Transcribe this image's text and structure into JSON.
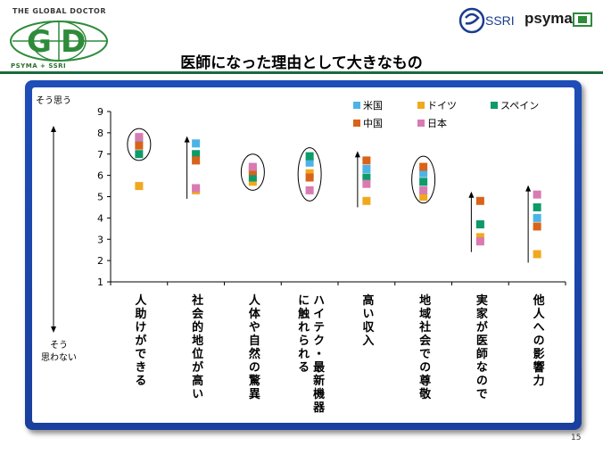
{
  "header": {
    "logo_left_top": "THE GLOBAL DOCTOR",
    "logo_left_bottom": "PSYMA + SSRI",
    "logo_right_ssri": "SSRI",
    "logo_right_psyma": "psyma"
  },
  "title": "医師になった理由として大きなもの",
  "page_number": "15",
  "colors": {
    "frame": "#1e4db8",
    "title_rule": "#1a6b3c",
    "us": "#4db3e6",
    "germany": "#f0a91e",
    "spain": "#0f9a6a",
    "china": "#d9631a",
    "japan": "#d97ab3"
  },
  "chart_data": {
    "type": "scatter",
    "ylim": [
      1,
      9
    ],
    "yticks": [
      "1",
      "2",
      "3",
      "4",
      "5",
      "6",
      "7",
      "8",
      "9"
    ],
    "y_top_label": "そう思う",
    "y_bottom_label_1": "そう",
    "y_bottom_label_2": "思わない",
    "categories": [
      "人助けができる",
      "社会的地位が高い",
      "人体や自然の驚異",
      "ハイテク・最新機器に触れられる",
      "高い収入",
      "地域社会での尊敬",
      "実家が医師なので",
      "他人への影響力"
    ],
    "category_lines": [
      [
        "人助けができる"
      ],
      [
        "社会的地位が高い"
      ],
      [
        "人体や自然の驚異"
      ],
      [
        "ハイテク・最新機器",
        "に触れられる"
      ],
      [
        "高い収入"
      ],
      [
        "地域社会での尊敬"
      ],
      [
        "実家が医師なので"
      ],
      [
        "他人への影響力"
      ]
    ],
    "series": [
      {
        "name": "米国",
        "color": "#4db3e6",
        "values": [
          7.7,
          7.5,
          6.3,
          6.6,
          6.3,
          6.1,
          3.7,
          4.0
        ]
      },
      {
        "name": "ドイツ",
        "color": "#f0a91e",
        "values": [
          5.5,
          5.3,
          5.7,
          6.1,
          4.8,
          5.0,
          3.1,
          2.3
        ]
      },
      {
        "name": "スペイン",
        "color": "#0f9a6a",
        "values": [
          7.0,
          7.0,
          5.9,
          6.9,
          5.9,
          5.7,
          3.7,
          4.5
        ]
      },
      {
        "name": "中国",
        "color": "#d9631a",
        "values": [
          7.4,
          6.7,
          6.2,
          5.9,
          6.7,
          6.4,
          4.8,
          3.6
        ]
      },
      {
        "name": "日本",
        "color": "#d97ab3",
        "values": [
          7.8,
          5.4,
          6.4,
          5.3,
          5.6,
          5.3,
          2.9,
          5.1
        ]
      }
    ],
    "ranges": [
      {
        "kind": "ellipse",
        "from": 6.7,
        "to": 8.2
      },
      {
        "kind": "arrow",
        "from": 4.9,
        "to": 7.8
      },
      {
        "kind": "ellipse",
        "from": 5.3,
        "to": 7.0
      },
      {
        "kind": "ellipse",
        "from": 4.8,
        "to": 7.3
      },
      {
        "kind": "arrow",
        "from": 4.5,
        "to": 7.1
      },
      {
        "kind": "ellipse",
        "from": 4.7,
        "to": 6.9
      },
      {
        "kind": "arrow",
        "from": 2.4,
        "to": 5.2
      },
      {
        "kind": "arrow",
        "from": 1.9,
        "to": 5.5
      }
    ],
    "legend_position": "top-right",
    "grid": false
  }
}
